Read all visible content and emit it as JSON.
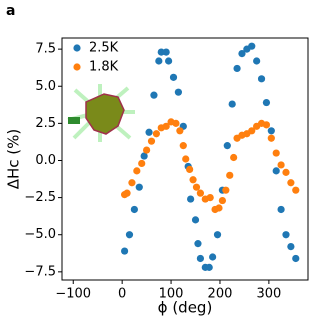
{
  "chart_data": {
    "type": "scatter",
    "panel_label": "a",
    "x_label": "ϕ (deg)",
    "y_label": "ΔHc (%)",
    "xlim": [
      -123,
      380
    ],
    "ylim": [
      -8.05,
      8.25
    ],
    "xticks": [
      {
        "value": -100,
        "label": "−100"
      },
      0,
      100,
      200,
      300
    ],
    "yticks": [
      {
        "value": -7.5,
        "label": "−7.5"
      },
      {
        "value": -5,
        "label": "−5.0"
      },
      {
        "value": -2.5,
        "label": "−2.5"
      },
      {
        "value": 0,
        "label": "0.0"
      },
      2.5,
      {
        "value": 5,
        "label": "5.0"
      },
      7.5
    ],
    "legend": "upper left",
    "series": [
      {
        "name": "2.5K",
        "color": "#1f77b4",
        "x": [
          5,
          15,
          25,
          35,
          45,
          55,
          65,
          75,
          80,
          90,
          95,
          105,
          115,
          125,
          135,
          140,
          150,
          155,
          160,
          170,
          178,
          185,
          195,
          205,
          215,
          225,
          235,
          245,
          255,
          265,
          275,
          285,
          295,
          305,
          315,
          325,
          335,
          345,
          355
        ],
        "values": [
          -6.1,
          -5.0,
          -3.3,
          -1.8,
          0.3,
          1.9,
          4.4,
          6.7,
          7.3,
          7.3,
          6.7,
          5.6,
          4.6,
          2.3,
          -0.4,
          -2.6,
          -4.0,
          -5.6,
          -6.6,
          -7.2,
          -7.2,
          -6.5,
          -5.0,
          -2.0,
          1.0,
          3.8,
          6.2,
          7.2,
          7.5,
          7.7,
          6.7,
          5.5,
          3.9,
          2.0,
          -0.7,
          -3.3,
          -5.0,
          -5.8,
          -6.6
        ]
      },
      {
        "name": "1.8K",
        "color": "#ff7f0e",
        "x": [
          5,
          10,
          20,
          30,
          40,
          50,
          60,
          70,
          80,
          90,
          100,
          110,
          118,
          125,
          130,
          138,
          145,
          152,
          160,
          170,
          180,
          190,
          198,
          205,
          212,
          220,
          228,
          235,
          245,
          255,
          265,
          275,
          285,
          295,
          305,
          315,
          325,
          335,
          345,
          355
        ],
        "values": [
          -2.3,
          -2.2,
          -1.5,
          -0.7,
          -0.2,
          0.7,
          1.3,
          1.8,
          2.2,
          2.3,
          2.6,
          2.5,
          2.0,
          1.0,
          0.1,
          -0.6,
          -1.3,
          -1.8,
          -2.2,
          -2.6,
          -2.5,
          -3.3,
          -3.2,
          -2.7,
          -2.0,
          -1.0,
          0.2,
          1.5,
          1.7,
          1.8,
          2.0,
          2.3,
          2.5,
          2.4,
          1.5,
          0.5,
          -0.3,
          -0.8,
          -1.5,
          -2.0
        ]
      }
    ]
  }
}
